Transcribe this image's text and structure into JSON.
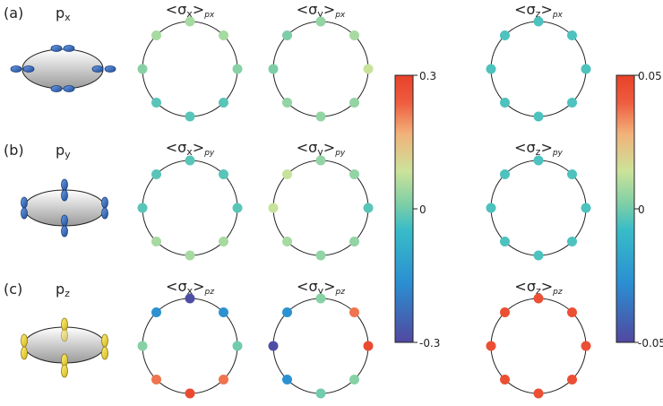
{
  "rows": [
    {
      "label": "(a)",
      "orbital": "p",
      "orbital_sub": "x",
      "orbital_color": "#3a6ec2",
      "panels": [
        {
          "title": "<σx>px",
          "title_main": "<σ",
          "title_comp": "x",
          "title_close": ">",
          "title_sub": "px",
          "values": [
            0.05,
            0.05,
            0.02,
            -0.02,
            -0.02,
            -0.02,
            0.02,
            0.05
          ]
        },
        {
          "title": "<σy>px",
          "title_main": "<σ",
          "title_comp": "y",
          "title_close": ">",
          "title_sub": "px",
          "values": [
            0.03,
            0.05,
            0.08,
            0.03,
            0.03,
            0.03,
            0.01,
            0.01
          ]
        },
        {
          "title": "<σz>px",
          "title_main": "<σ",
          "title_comp": "z",
          "title_close": ">",
          "title_sub": "px",
          "values": [
            -0.005,
            -0.005,
            -0.005,
            -0.005,
            -0.005,
            -0.005,
            -0.005,
            -0.005
          ]
        }
      ]
    },
    {
      "label": "(b)",
      "orbital": "p",
      "orbital_sub": "y",
      "orbital_color": "#3a6ec2",
      "panels": [
        {
          "title": "<σx>py",
          "title_main": "<σ",
          "title_comp": "x",
          "title_close": ">",
          "title_sub": "py",
          "values": [
            -0.02,
            -0.02,
            -0.02,
            0.05,
            0.05,
            0.05,
            -0.02,
            -0.02
          ]
        },
        {
          "title": "<σy>py",
          "title_main": "<σ",
          "title_comp": "y",
          "title_close": ">",
          "title_sub": "py",
          "values": [
            0.03,
            0.03,
            -0.02,
            0.03,
            0.03,
            0.05,
            0.08,
            0.08
          ]
        },
        {
          "title": "<σz>py",
          "title_main": "<σ",
          "title_comp": "z",
          "title_close": ">",
          "title_sub": "py",
          "values": [
            -0.005,
            -0.005,
            -0.005,
            -0.005,
            -0.005,
            -0.005,
            -0.005,
            -0.005
          ]
        }
      ]
    },
    {
      "label": "(c)",
      "orbital": "p",
      "orbital_sub": "z",
      "orbital_color": "#e6d028",
      "panels": [
        {
          "title": "<σx>pz",
          "title_main": "<σ",
          "title_comp": "x",
          "title_close": ">",
          "title_sub": "pz",
          "values": [
            -0.29,
            -0.16,
            0.0,
            0.22,
            0.28,
            0.22,
            0.02,
            -0.16
          ]
        },
        {
          "title": "<σy>pz",
          "title_main": "<σ",
          "title_comp": "y",
          "title_close": ">",
          "title_sub": "pz",
          "values": [
            0.02,
            0.22,
            0.28,
            0.02,
            0.0,
            -0.16,
            -0.29,
            -0.16
          ]
        },
        {
          "title": "<σz>pz",
          "title_main": "<σ",
          "title_comp": "z",
          "title_close": ">",
          "title_sub": "pz",
          "values": [
            0.045,
            0.045,
            0.045,
            0.045,
            0.045,
            0.045,
            0.045,
            0.045
          ]
        }
      ]
    }
  ],
  "colorbars": [
    {
      "min": -0.3,
      "max": 0.3,
      "ticks": [
        "0.3",
        "0",
        "-0.3"
      ]
    },
    {
      "min": -0.05,
      "max": 0.05,
      "ticks": [
        "0.05",
        "0",
        "-0.05"
      ]
    }
  ],
  "colors": {
    "scale": [
      "#5148a0",
      "#2b8ed2",
      "#38bcc8",
      "#7fcfa6",
      "#cbe39a",
      "#f2b27a",
      "#ee5c3e",
      "#e8412a"
    ],
    "ring": "#222222",
    "ellipse_outline": "#222222"
  }
}
